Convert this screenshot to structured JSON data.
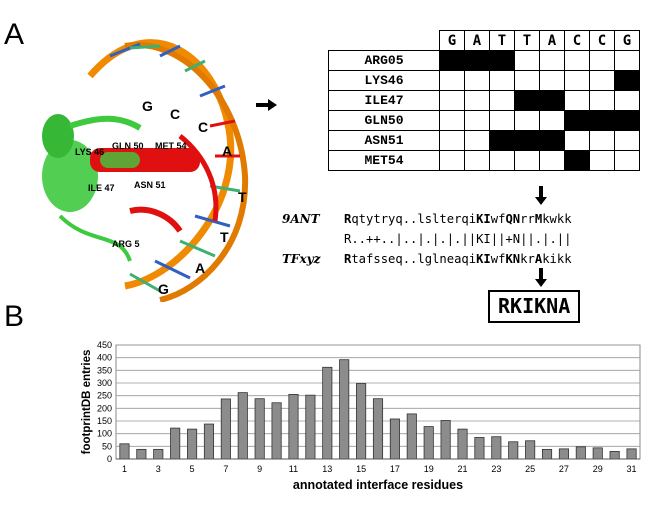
{
  "panels": {
    "a_label": "A",
    "b_label": "B"
  },
  "structure": {
    "residue_labels": [
      "LYS 46",
      "GLN 50",
      "MET 54",
      "ILE 47",
      "ASN 51",
      "ARG 5"
    ],
    "base_labels": [
      "G",
      "C",
      "C",
      "A",
      "T",
      "T",
      "A",
      "G"
    ],
    "colors": {
      "protein": "#3fc93f",
      "helix_highlight": "#e01010",
      "dna_backbone": "#f08a00",
      "bases_green": "#40b070",
      "bases_blue": "#3060c0"
    }
  },
  "matrix": {
    "bases": [
      "G",
      "A",
      "T",
      "T",
      "A",
      "C",
      "C",
      "G"
    ],
    "rows": [
      {
        "residue": "ARG05",
        "cells": [
          1,
          1,
          1,
          0,
          0,
          0,
          0,
          0
        ]
      },
      {
        "residue": "LYS46",
        "cells": [
          0,
          0,
          0,
          0,
          0,
          0,
          0,
          1
        ]
      },
      {
        "residue": "ILE47",
        "cells": [
          0,
          0,
          0,
          1,
          1,
          0,
          0,
          0
        ]
      },
      {
        "residue": "GLN50",
        "cells": [
          0,
          0,
          0,
          0,
          0,
          1,
          1,
          1
        ]
      },
      {
        "residue": "ASN51",
        "cells": [
          0,
          0,
          1,
          1,
          1,
          0,
          0,
          0
        ]
      },
      {
        "residue": "MET54",
        "cells": [
          0,
          0,
          0,
          0,
          0,
          1,
          0,
          0
        ]
      }
    ]
  },
  "alignment": {
    "rows": [
      {
        "name": "9ANT",
        "segments": [
          {
            "t": "R",
            "b": true
          },
          {
            "t": "qtytryq..lslterqi",
            "b": false
          },
          {
            "t": "KI",
            "b": true
          },
          {
            "t": "wf",
            "b": false
          },
          {
            "t": "QN",
            "b": true
          },
          {
            "t": "rr",
            "b": false
          },
          {
            "t": "M",
            "b": true
          },
          {
            "t": "kwkk",
            "b": false
          }
        ]
      },
      {
        "name": "",
        "segments": [
          {
            "t": "R..++..|..|.|.|.||KI||+N||.|.||",
            "b": false
          }
        ]
      },
      {
        "name": "TFxyz",
        "segments": [
          {
            "t": "R",
            "b": true
          },
          {
            "t": "tafsseq..lglneaqi",
            "b": false
          },
          {
            "t": "KI",
            "b": true
          },
          {
            "t": "wf",
            "b": false
          },
          {
            "t": "KN",
            "b": true
          },
          {
            "t": "kr",
            "b": false
          },
          {
            "t": "A",
            "b": true
          },
          {
            "t": "kikk",
            "b": false
          }
        ]
      }
    ]
  },
  "footprint_result": "RKIKNA",
  "chart_data": {
    "type": "bar",
    "categories": [
      1,
      2,
      3,
      4,
      5,
      6,
      7,
      8,
      9,
      10,
      11,
      12,
      13,
      14,
      15,
      16,
      17,
      18,
      19,
      20,
      21,
      22,
      23,
      24,
      25,
      26,
      27,
      28,
      29,
      30,
      31
    ],
    "values": [
      60,
      38,
      38,
      122,
      118,
      138,
      237,
      262,
      238,
      222,
      255,
      252,
      362,
      392,
      298,
      238,
      158,
      178,
      128,
      152,
      118,
      85,
      88,
      68,
      72,
      38,
      40,
      48,
      44,
      30,
      40
    ],
    "ylabel": "footprintDB entries",
    "xlabel": "annotated interface residues",
    "ylim": [
      0,
      450
    ],
    "yticks": [
      0,
      50,
      100,
      150,
      200,
      250,
      300,
      350,
      400,
      450
    ],
    "xtick_labels": [
      1,
      3,
      5,
      7,
      9,
      11,
      13,
      15,
      17,
      19,
      21,
      23,
      25,
      27,
      29,
      31
    ],
    "grid": true,
    "bar_color": "#8c8c8c"
  }
}
